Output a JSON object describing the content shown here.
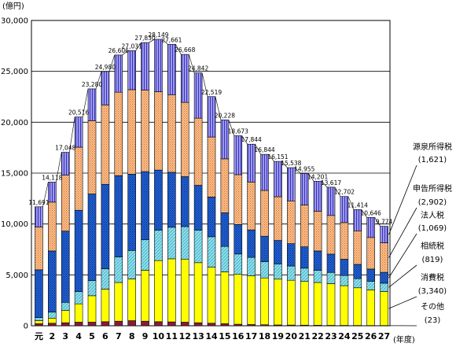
{
  "chart_data": {
    "type": "bar",
    "stacked": true,
    "ylabel": "(億円)",
    "xlabel": "(年度)",
    "ylim": [
      0,
      30000
    ],
    "yticks": [
      0,
      5000,
      10000,
      15000,
      20000,
      25000,
      30000
    ],
    "ytick_labels": [
      "0",
      "5,000",
      "10,000",
      "15,000",
      "20,000",
      "25,000",
      "30,000"
    ],
    "grid": true,
    "categories": [
      "元",
      "2",
      "3",
      "4",
      "5",
      "6",
      "7",
      "8",
      "9",
      "10",
      "11",
      "12",
      "13",
      "14",
      "15",
      "16",
      "17",
      "18",
      "19",
      "20",
      "21",
      "22",
      "23",
      "24",
      "25",
      "26",
      "27"
    ],
    "totals": [
      11691,
      14118,
      17048,
      20516,
      23280,
      24980,
      26606,
      27031,
      27830,
      28149,
      27661,
      26668,
      24842,
      22519,
      20228,
      18673,
      17844,
      16844,
      16151,
      15538,
      14955,
      14201,
      13617,
      12702,
      11414,
      10646,
      9774
    ],
    "total_labels": [
      "11,691",
      "14,118",
      "17,048",
      "20,516",
      "23,280",
      "24,980",
      "26,606",
      "27,031",
      "27,830",
      "28,149",
      "27,661",
      "26,668",
      "24,842",
      "22,519",
      "20,228",
      "18,673",
      "17,844",
      "16,844",
      "16,151",
      "15,538",
      "14,955",
      "14,201",
      "13,617",
      "12,702",
      "11,414",
      "10,646",
      "9,774"
    ],
    "series": [
      {
        "name": "その他",
        "legend_value": "(23)",
        "color": "#8b1a3a",
        "values": [
          200,
          250,
          300,
          350,
          350,
          400,
          450,
          500,
          450,
          400,
          380,
          350,
          300,
          250,
          200,
          150,
          120,
          100,
          80,
          70,
          60,
          50,
          40,
          35,
          30,
          25,
          23
        ]
      },
      {
        "name": "消費税",
        "legend_value": "(3,340)",
        "color": "#ffff00",
        "values": [
          300,
          500,
          1200,
          1800,
          2600,
          3200,
          3800,
          4100,
          5000,
          6000,
          6200,
          6200,
          5900,
          5500,
          5100,
          4900,
          4800,
          4600,
          4500,
          4400,
          4300,
          4200,
          4100,
          3900,
          3700,
          3500,
          3340
        ]
      },
      {
        "name": "相続税",
        "legend_value": "(819)",
        "color": "#7fd8e6",
        "values": [
          300,
          600,
          800,
          1200,
          1500,
          2000,
          2500,
          2800,
          3000,
          3000,
          3100,
          3200,
          3200,
          3000,
          2500,
          2000,
          1800,
          1600,
          1500,
          1400,
          1300,
          1200,
          1100,
          1000,
          900,
          850,
          819
        ]
      },
      {
        "name": "法人税",
        "legend_value": "(1,069)",
        "color": "#1f5fd0",
        "values": [
          4700,
          6000,
          7000,
          8000,
          8500,
          8300,
          8000,
          7500,
          6700,
          5900,
          5400,
          4900,
          4400,
          3900,
          3300,
          2900,
          2700,
          2500,
          2300,
          2200,
          2100,
          1900,
          1800,
          1600,
          1400,
          1200,
          1069
        ]
      },
      {
        "name": "申告所得税",
        "legend_value": "(2,902)",
        "color": "#f4b07c",
        "values": [
          4200,
          4800,
          5500,
          6200,
          7200,
          7800,
          8200,
          8300,
          8000,
          7700,
          7600,
          7300,
          6600,
          5900,
          5300,
          4900,
          4700,
          4500,
          4300,
          4200,
          4100,
          3900,
          3800,
          3600,
          3300,
          3100,
          2902
        ]
      },
      {
        "name": "源泉所得税",
        "legend_value": "(1,621)",
        "color": "#8f8cec",
        "values": [
          1991,
          1968,
          2248,
          2966,
          3130,
          3280,
          3656,
          3831,
          4680,
          5149,
          4981,
          4718,
          4442,
          3969,
          3828,
          3823,
          3724,
          3544,
          3471,
          3268,
          3095,
          2951,
          2777,
          2567,
          2084,
          1971,
          1621
        ]
      }
    ]
  }
}
